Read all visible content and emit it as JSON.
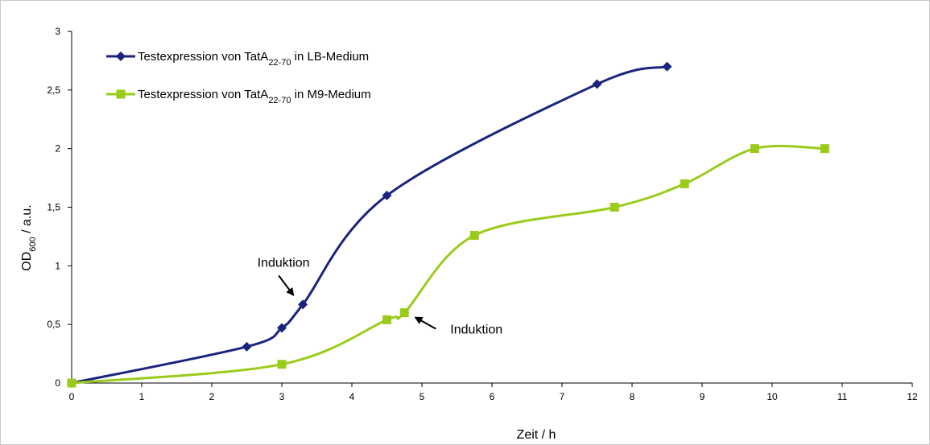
{
  "chart_data": {
    "type": "line",
    "title": "",
    "xlabel": "Zeit / h",
    "ylabel": {
      "main": "OD",
      "sub": "600",
      "rest": " / a.u."
    },
    "xlim": [
      0,
      12
    ],
    "ylim": [
      0,
      3
    ],
    "x_ticks": [
      {
        "v": 0,
        "label": "0"
      },
      {
        "v": 1,
        "label": "1"
      },
      {
        "v": 2,
        "label": "2"
      },
      {
        "v": 3,
        "label": "3"
      },
      {
        "v": 4,
        "label": "4"
      },
      {
        "v": 5,
        "label": "5"
      },
      {
        "v": 6,
        "label": "6"
      },
      {
        "v": 7,
        "label": "7"
      },
      {
        "v": 8,
        "label": "8"
      },
      {
        "v": 9,
        "label": "9"
      },
      {
        "v": 10,
        "label": "10"
      },
      {
        "v": 11,
        "label": "11"
      },
      {
        "v": 12,
        "label": "12"
      }
    ],
    "y_ticks": [
      {
        "v": 0,
        "label": "0"
      },
      {
        "v": 0.5,
        "label": "0,5"
      },
      {
        "v": 1,
        "label": "1"
      },
      {
        "v": 1.5,
        "label": "1,5"
      },
      {
        "v": 2,
        "label": "2"
      },
      {
        "v": 2.5,
        "label": "2,5"
      },
      {
        "v": 3,
        "label": "3"
      }
    ],
    "grid": false,
    "legend_position": "top-left",
    "series": [
      {
        "id": "lb",
        "legend": {
          "pre": "Testexpression von TatA",
          "sub": "22-70",
          "post": " in LB-Medium"
        },
        "color": "#1a237e",
        "marker": "diamond",
        "x": [
          0,
          2.5,
          3,
          3.3,
          4.5,
          7.5,
          8.5
        ],
        "y": [
          0,
          0.31,
          0.47,
          0.67,
          1.6,
          2.55,
          2.7
        ]
      },
      {
        "id": "m9",
        "legend": {
          "pre": "Testexpression von TatA",
          "sub": "22-70",
          "post": " in M9-Medium"
        },
        "color": "#99cc1a",
        "marker": "square",
        "x": [
          0,
          3,
          4.5,
          4.75,
          5.75,
          7.75,
          8.75,
          9.75,
          10.75
        ],
        "y": [
          0,
          0.16,
          0.54,
          0.6,
          1.26,
          1.5,
          1.7,
          2.0,
          2.0
        ]
      }
    ],
    "annotations": [
      {
        "id": "induktion-lb",
        "text": "Induktion",
        "series": "lb",
        "point_x": 3.3,
        "point_y": 0.67,
        "text_side": "upper-left"
      },
      {
        "id": "induktion-m9",
        "text": "Induktion",
        "series": "m9",
        "point_x": 4.75,
        "point_y": 0.6,
        "text_side": "lower-right"
      }
    ]
  }
}
